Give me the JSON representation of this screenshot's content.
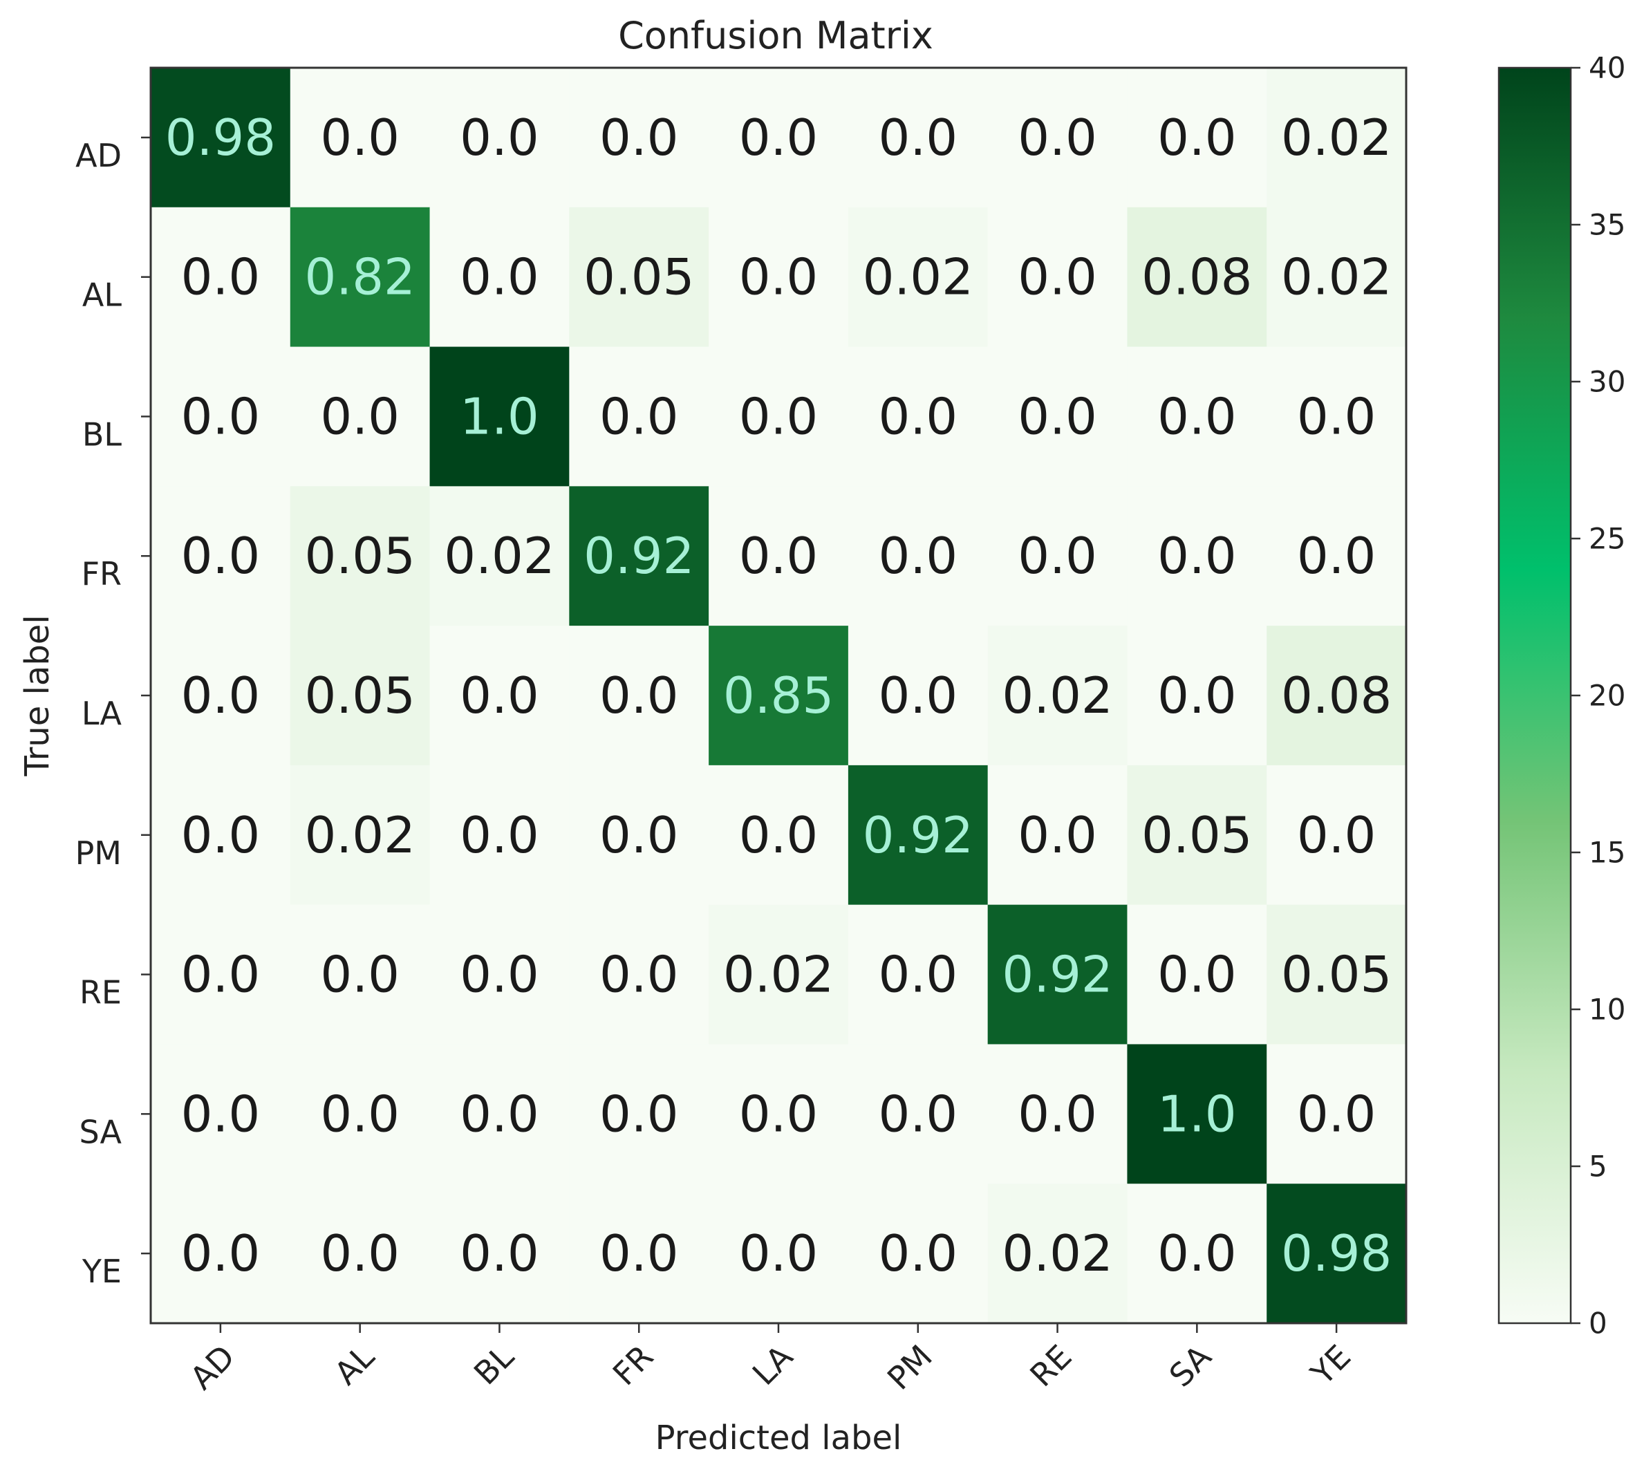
{
  "chart_data": {
    "type": "heatmap",
    "title": "Confusion Matrix",
    "xlabel": "Predicted label",
    "ylabel": "True label",
    "x_categories": [
      "AD",
      "AL",
      "BL",
      "FR",
      "LA",
      "PM",
      "RE",
      "SA",
      "YE"
    ],
    "y_categories": [
      "AD",
      "AL",
      "BL",
      "FR",
      "LA",
      "PM",
      "RE",
      "SA",
      "YE"
    ],
    "values": [
      [
        0.98,
        0.0,
        0.0,
        0.0,
        0.0,
        0.0,
        0.0,
        0.0,
        0.02
      ],
      [
        0.0,
        0.82,
        0.0,
        0.05,
        0.0,
        0.02,
        0.0,
        0.08,
        0.02
      ],
      [
        0.0,
        0.0,
        1.0,
        0.0,
        0.0,
        0.0,
        0.0,
        0.0,
        0.0
      ],
      [
        0.0,
        0.05,
        0.02,
        0.92,
        0.0,
        0.0,
        0.0,
        0.0,
        0.0
      ],
      [
        0.0,
        0.05,
        0.0,
        0.0,
        0.85,
        0.0,
        0.02,
        0.0,
        0.08
      ],
      [
        0.0,
        0.02,
        0.0,
        0.0,
        0.0,
        0.92,
        0.0,
        0.05,
        0.0
      ],
      [
        0.0,
        0.0,
        0.0,
        0.0,
        0.02,
        0.0,
        0.92,
        0.0,
        0.05
      ],
      [
        0.0,
        0.0,
        0.0,
        0.0,
        0.0,
        0.0,
        0.0,
        1.0,
        0.0
      ],
      [
        0.0,
        0.0,
        0.0,
        0.0,
        0.0,
        0.0,
        0.02,
        0.0,
        0.98
      ]
    ],
    "value_labels": [
      [
        "0.98",
        "0.0",
        "0.0",
        "0.0",
        "0.0",
        "0.0",
        "0.0",
        "0.0",
        "0.02"
      ],
      [
        "0.0",
        "0.82",
        "0.0",
        "0.05",
        "0.0",
        "0.02",
        "0.0",
        "0.08",
        "0.02"
      ],
      [
        "0.0",
        "0.0",
        "1.0",
        "0.0",
        "0.0",
        "0.0",
        "0.0",
        "0.0",
        "0.0"
      ],
      [
        "0.0",
        "0.05",
        "0.02",
        "0.92",
        "0.0",
        "0.0",
        "0.0",
        "0.0",
        "0.0"
      ],
      [
        "0.0",
        "0.05",
        "0.0",
        "0.0",
        "0.85",
        "0.0",
        "0.02",
        "0.0",
        "0.08"
      ],
      [
        "0.0",
        "0.02",
        "0.0",
        "0.0",
        "0.0",
        "0.92",
        "0.0",
        "0.05",
        "0.0"
      ],
      [
        "0.0",
        "0.0",
        "0.0",
        "0.0",
        "0.02",
        "0.0",
        "0.92",
        "0.0",
        "0.05"
      ],
      [
        "0.0",
        "0.0",
        "0.0",
        "0.0",
        "0.0",
        "0.0",
        "0.0",
        "1.0",
        "0.0"
      ],
      [
        "0.0",
        "0.0",
        "0.0",
        "0.0",
        "0.0",
        "0.0",
        "0.02",
        "0.0",
        "0.98"
      ]
    ],
    "colorbar": {
      "range": [
        0,
        40
      ],
      "ticks": [
        0,
        5,
        10,
        15,
        20,
        25,
        30,
        35,
        40
      ],
      "tick_labels": [
        "0",
        "5",
        "10",
        "15",
        "20",
        "25",
        "30",
        "35",
        "40"
      ],
      "colormap": "Greens",
      "color_stops": [
        "#f7fcf5",
        "#c7e9c0",
        "#74c476",
        "#00c06c",
        "#1e8a3f",
        "#00441b"
      ]
    },
    "colors": {
      "dark_text": "#1a1a1a",
      "light_text": "#a6f0d6",
      "frame": "#333333"
    },
    "grid": false
  }
}
